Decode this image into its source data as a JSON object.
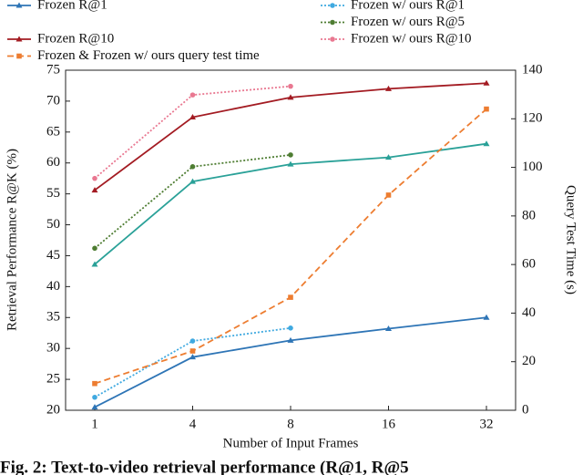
{
  "chart_data": {
    "type": "line",
    "caption": "Fig. 2: Text-to-video retrieval performance (R@1, R@5",
    "xlabel": "Number of Input Frames",
    "ylabel": "Retrieval Performance R@K (%)",
    "y2label": "Query Test  Time (s)",
    "categories": [
      "1",
      "4",
      "8",
      "16",
      "32"
    ],
    "ylim": [
      20,
      75
    ],
    "yticks": [
      20,
      25,
      30,
      35,
      40,
      45,
      50,
      55,
      60,
      65,
      70,
      75
    ],
    "y2lim": [
      0,
      140
    ],
    "y2ticks": [
      0,
      20,
      40,
      60,
      80,
      100,
      120,
      140
    ],
    "series": [
      {
        "name": "Frozen R@1",
        "color": "#2e75b6",
        "dash": "solid",
        "marker": "triangle",
        "values": [
          20.5,
          28.6,
          31.3,
          33.2,
          35.0
        ]
      },
      {
        "name": "Frozen w/ ours R@1",
        "color": "#3fa9e0",
        "dash": "dotted",
        "marker": "circle",
        "values": [
          22.1,
          31.2,
          33.3,
          null,
          null
        ]
      },
      {
        "color": "#2aa198",
        "dash": "solid",
        "marker": "triangle",
        "values": [
          43.6,
          57.0,
          59.8,
          60.9,
          63.1
        ]
      },
      {
        "name": "Frozen w/ ours R@5",
        "color": "#4e7d32",
        "dash": "dotted",
        "marker": "circle",
        "values": [
          46.2,
          59.4,
          61.3,
          null,
          null
        ]
      },
      {
        "name": "Frozen R@10",
        "color": "#a31b22",
        "dash": "solid",
        "marker": "triangle",
        "values": [
          55.6,
          67.4,
          70.6,
          72.0,
          72.9
        ]
      },
      {
        "name": "Frozen w/ ours R@10",
        "color": "#e97891",
        "dash": "dotted",
        "marker": "circle",
        "values": [
          57.5,
          71.0,
          72.4,
          null,
          null
        ]
      },
      {
        "name": "Frozen & Frozen w/ ours query test time",
        "color": "#ed7d31",
        "dash": "dashed",
        "marker": "square",
        "axis": "y2",
        "values": [
          11,
          24.4,
          46.5,
          88.6,
          124
        ]
      }
    ]
  }
}
